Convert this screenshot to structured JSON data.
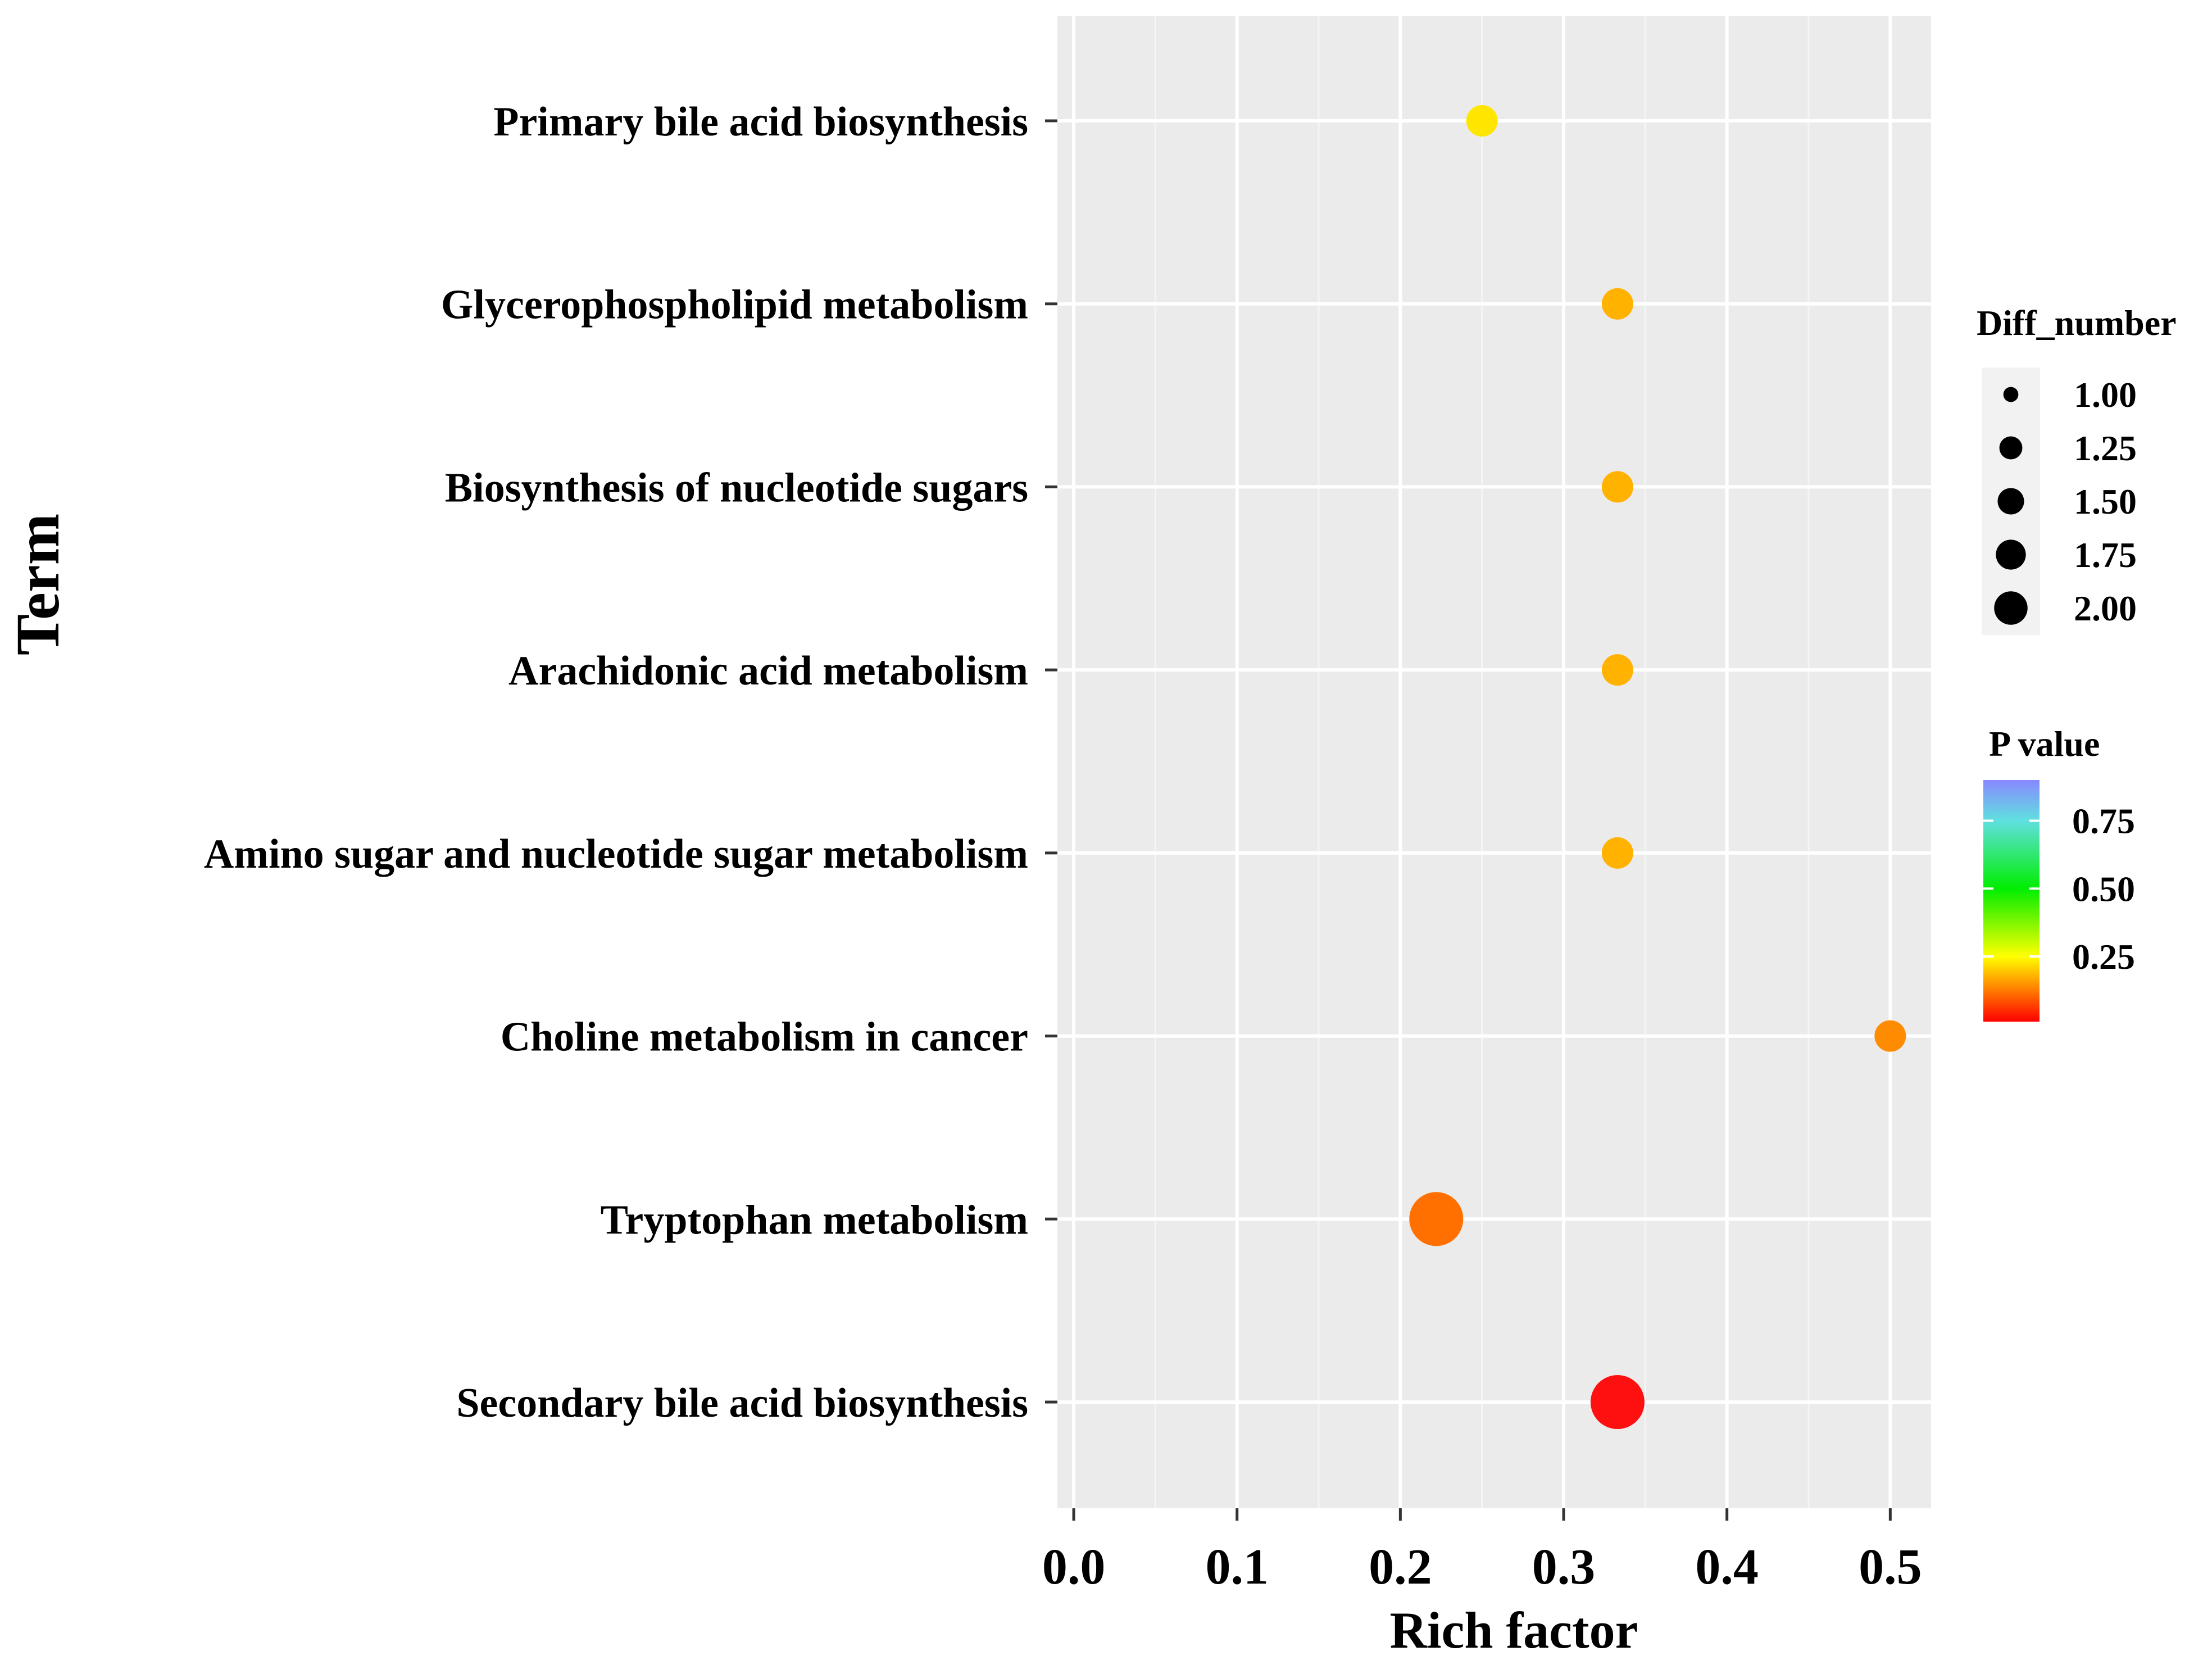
{
  "chart_data": {
    "type": "scatter",
    "title": "",
    "xlabel": "Rich factor",
    "ylabel": "Term",
    "xlim": [
      -0.01,
      0.525
    ],
    "x_ticks": [
      "0.0",
      "0.1",
      "0.2",
      "0.3",
      "0.4",
      "0.5"
    ],
    "x_tick_values": [
      0.0,
      0.1,
      0.2,
      0.3,
      0.4,
      0.5
    ],
    "grid": true,
    "legend_placement": "right",
    "categories": [
      "Primary bile acid biosynthesis",
      "Glycerophospholipid metabolism",
      "Biosynthesis of nucleotide sugars",
      "Arachidonic acid metabolism",
      "Amino sugar and nucleotide sugar metabolism",
      "Choline metabolism in cancer",
      "Tryptophan metabolism",
      "Secondary bile acid biosynthesis"
    ],
    "points": [
      {
        "term": "Primary bile acid biosynthesis",
        "rich_factor": 0.25,
        "diff_number": 1,
        "p_value": 0.22,
        "color": "#FFE600"
      },
      {
        "term": "Glycerophospholipid metabolism",
        "rich_factor": 0.333,
        "diff_number": 1,
        "p_value": 0.18,
        "color": "#FFB300"
      },
      {
        "term": "Biosynthesis of nucleotide sugars",
        "rich_factor": 0.333,
        "diff_number": 1,
        "p_value": 0.18,
        "color": "#FFB300"
      },
      {
        "term": "Arachidonic acid metabolism",
        "rich_factor": 0.333,
        "diff_number": 1,
        "p_value": 0.18,
        "color": "#FFB300"
      },
      {
        "term": "Amino sugar and nucleotide sugar metabolism",
        "rich_factor": 0.333,
        "diff_number": 1,
        "p_value": 0.18,
        "color": "#FFB300"
      },
      {
        "term": "Choline metabolism in cancer",
        "rich_factor": 0.5,
        "diff_number": 1,
        "p_value": 0.12,
        "color": "#FF8C00"
      },
      {
        "term": "Tryptophan metabolism",
        "rich_factor": 0.222,
        "diff_number": 2,
        "p_value": 0.08,
        "color": "#FF7000"
      },
      {
        "term": "Secondary bile acid biosynthesis",
        "rich_factor": 0.333,
        "diff_number": 2,
        "p_value": 0.01,
        "color": "#FF1010"
      }
    ],
    "size_legend": {
      "title": "Diff_number",
      "labels": [
        "1.00",
        "1.25",
        "1.50",
        "1.75",
        "2.00"
      ],
      "values": [
        1.0,
        1.25,
        1.5,
        1.75,
        2.0
      ]
    },
    "color_legend": {
      "title": "P value",
      "labels": [
        "0.75",
        "0.50",
        "0.25"
      ],
      "values": [
        0.75,
        0.5,
        0.25
      ],
      "range": [
        0.01,
        0.9
      ],
      "stops": [
        {
          "value": 0.01,
          "color": "#FF0000"
        },
        {
          "value": 0.25,
          "color": "#FFFF00"
        },
        {
          "value": 0.5,
          "color": "#00EE00"
        },
        {
          "value": 0.75,
          "color": "#60E0E0"
        },
        {
          "value": 0.9,
          "color": "#8888FF"
        }
      ]
    },
    "colors": {
      "panel_background": "#EBEBEB",
      "grid_major": "#FFFFFF",
      "grid_minor": "#F5F5F5",
      "size_legend_dot": "#000000"
    }
  }
}
